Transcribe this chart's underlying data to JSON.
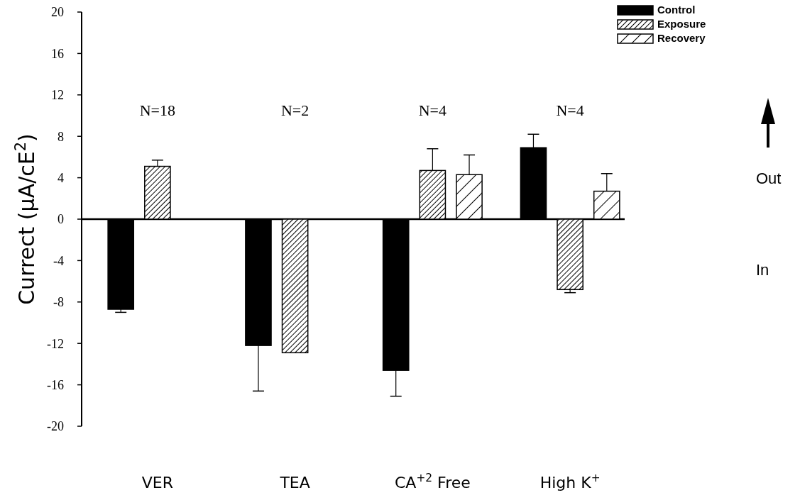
{
  "chart_data": {
    "type": "bar",
    "ylabel": "Currect (μA/cE$^{2}$)",
    "categories": [
      "VER",
      "TEA",
      "CA$^{+2}$ Free",
      "High K$^{+}$"
    ],
    "series": [
      {
        "name": "Control",
        "color": "#000000",
        "values": [
          -8.7,
          -12.2,
          -14.6,
          6.9
        ],
        "errors": [
          0.3,
          4.4,
          2.5,
          1.3
        ]
      },
      {
        "name": "Exposure",
        "color": "#000000",
        "values": [
          5.1,
          -12.9,
          4.7,
          -6.8
        ],
        "errors": [
          0.6,
          null,
          2.1,
          0.3
        ]
      },
      {
        "name": "Recovery",
        "color": "#000000",
        "values": [
          null,
          null,
          4.3,
          2.7
        ],
        "errors": [
          null,
          null,
          1.9,
          1.7
        ]
      }
    ],
    "ylim": [
      -20,
      20
    ],
    "yticks": [
      -20,
      -16,
      -12,
      -8,
      -4,
      0,
      4,
      8,
      12,
      16,
      20
    ],
    "legend": "top right",
    "annotations": [
      "N=18",
      "N=2",
      "N=4",
      "N=4",
      "Out",
      "In"
    ]
  }
}
